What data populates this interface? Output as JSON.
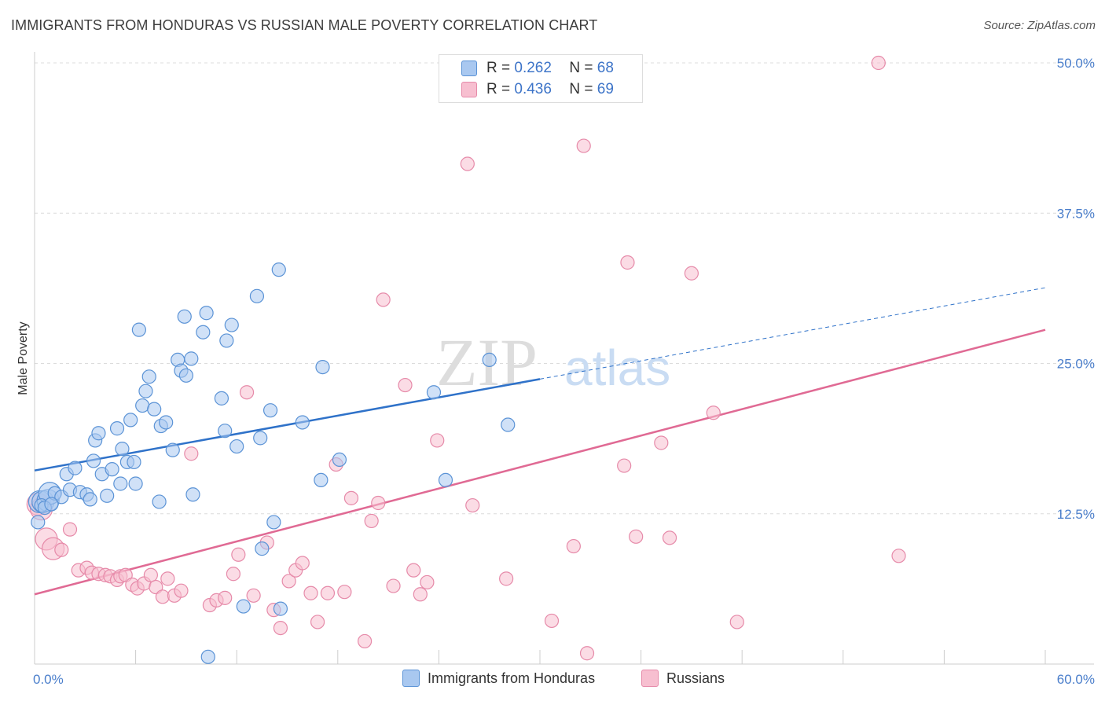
{
  "title": "IMMIGRANTS FROM HONDURAS VS RUSSIAN MALE POVERTY CORRELATION CHART",
  "source": "Source: ZipAtlas.com",
  "watermark": {
    "left": "ZIP",
    "right": "atlas"
  },
  "legend": {
    "rows": [
      {
        "r_label": "R =",
        "r_value": "0.262",
        "n_label": "N =",
        "n_value": "68"
      },
      {
        "r_label": "R =",
        "r_value": "0.436",
        "n_label": "N =",
        "n_value": "69"
      }
    ]
  },
  "bottom_legend": [
    "Immigrants from Honduras",
    "Russians"
  ],
  "colors": {
    "blue_fill": "#a9c8f0",
    "blue_stroke": "#5b93d6",
    "blue_line": "#2f72c9",
    "pink_fill": "#f7bfd0",
    "pink_stroke": "#e68aa9",
    "pink_line": "#e06a94",
    "grid": "#dcdcdc",
    "tick_text": "#4a7ecb"
  },
  "chart_data": {
    "type": "scatter",
    "xlabel": "",
    "ylabel": "Male Poverty",
    "xlim": [
      0,
      60
    ],
    "ylim": [
      0,
      50
    ],
    "x_ticks": [
      {
        "value": 0,
        "label": "0.0%"
      },
      {
        "value": 60,
        "label": "60.0%"
      }
    ],
    "y_ticks": [
      {
        "value": 12.5,
        "label": "12.5%"
      },
      {
        "value": 25,
        "label": "25.0%"
      },
      {
        "value": 37.5,
        "label": "37.5%"
      },
      {
        "value": 50,
        "label": "50.0%"
      }
    ],
    "grid": true,
    "legend_position": "top-center",
    "series": [
      {
        "name": "Immigrants from Honduras",
        "color": "blue",
        "trend": {
          "x0": 0,
          "y0": 16.1,
          "x1": 30,
          "y1": 23.7,
          "dash_to_x": 60,
          "dash_to_y": 31.3
        },
        "points": [
          [
            0.3,
            13.5
          ],
          [
            0.5,
            13.5
          ],
          [
            0.8,
            13.6
          ],
          [
            0.9,
            14.2
          ],
          [
            1.2,
            14.2
          ],
          [
            1.6,
            13.9
          ],
          [
            1.9,
            15.8
          ],
          [
            2.1,
            14.5
          ],
          [
            2.4,
            16.3
          ],
          [
            2.7,
            14.3
          ],
          [
            3.1,
            14.1
          ],
          [
            3.3,
            13.7
          ],
          [
            3.5,
            16.9
          ],
          [
            3.6,
            18.6
          ],
          [
            3.8,
            19.2
          ],
          [
            4.0,
            15.8
          ],
          [
            4.3,
            14.0
          ],
          [
            4.6,
            16.2
          ],
          [
            4.9,
            19.6
          ],
          [
            5.1,
            15.0
          ],
          [
            5.2,
            17.9
          ],
          [
            5.5,
            16.8
          ],
          [
            5.7,
            20.3
          ],
          [
            5.9,
            16.8
          ],
          [
            6.0,
            15.0
          ],
          [
            6.2,
            27.8
          ],
          [
            6.4,
            21.5
          ],
          [
            6.6,
            22.7
          ],
          [
            6.8,
            23.9
          ],
          [
            7.1,
            21.2
          ],
          [
            7.4,
            13.5
          ],
          [
            7.5,
            19.8
          ],
          [
            7.8,
            20.1
          ],
          [
            8.2,
            17.8
          ],
          [
            8.5,
            25.3
          ],
          [
            8.7,
            24.4
          ],
          [
            8.9,
            28.9
          ],
          [
            9.0,
            24.0
          ],
          [
            9.3,
            25.4
          ],
          [
            9.4,
            14.1
          ],
          [
            10.0,
            27.6
          ],
          [
            10.2,
            29.2
          ],
          [
            10.3,
            0.6
          ],
          [
            11.1,
            22.1
          ],
          [
            11.3,
            19.4
          ],
          [
            11.4,
            26.9
          ],
          [
            11.7,
            28.2
          ],
          [
            12.0,
            18.1
          ],
          [
            12.4,
            4.8
          ],
          [
            13.2,
            30.6
          ],
          [
            13.4,
            18.8
          ],
          [
            13.5,
            9.6
          ],
          [
            14.0,
            21.1
          ],
          [
            14.2,
            11.8
          ],
          [
            14.5,
            32.8
          ],
          [
            14.6,
            4.6
          ],
          [
            15.9,
            20.1
          ],
          [
            17.0,
            15.3
          ],
          [
            17.1,
            24.7
          ],
          [
            18.1,
            17.0
          ],
          [
            23.7,
            22.6
          ],
          [
            24.4,
            15.3
          ],
          [
            27.0,
            25.3
          ],
          [
            28.1,
            19.9
          ],
          [
            0.2,
            11.8
          ],
          [
            0.4,
            13.2
          ],
          [
            0.6,
            13.0
          ],
          [
            1.0,
            13.3
          ]
        ]
      },
      {
        "name": "Russians",
        "color": "pink",
        "trend": {
          "x0": 0,
          "y0": 5.8,
          "x1": 60,
          "y1": 27.8
        },
        "points": [
          [
            0.2,
            13.3
          ],
          [
            0.4,
            12.9
          ],
          [
            0.7,
            10.4
          ],
          [
            1.1,
            9.6
          ],
          [
            1.6,
            9.5
          ],
          [
            2.1,
            11.2
          ],
          [
            2.6,
            7.8
          ],
          [
            3.1,
            8.0
          ],
          [
            3.4,
            7.6
          ],
          [
            3.8,
            7.5
          ],
          [
            4.2,
            7.4
          ],
          [
            4.5,
            7.3
          ],
          [
            4.9,
            7.0
          ],
          [
            5.1,
            7.3
          ],
          [
            5.4,
            7.4
          ],
          [
            5.8,
            6.6
          ],
          [
            6.1,
            6.3
          ],
          [
            6.5,
            6.7
          ],
          [
            6.9,
            7.4
          ],
          [
            7.2,
            6.4
          ],
          [
            7.6,
            5.6
          ],
          [
            7.9,
            7.1
          ],
          [
            8.3,
            5.7
          ],
          [
            8.7,
            6.1
          ],
          [
            9.3,
            17.5
          ],
          [
            10.4,
            4.9
          ],
          [
            10.8,
            5.3
          ],
          [
            11.3,
            5.5
          ],
          [
            11.8,
            7.5
          ],
          [
            12.1,
            9.1
          ],
          [
            12.6,
            22.6
          ],
          [
            13.0,
            5.7
          ],
          [
            13.8,
            10.1
          ],
          [
            14.2,
            4.5
          ],
          [
            14.6,
            3.0
          ],
          [
            15.1,
            6.9
          ],
          [
            15.5,
            7.8
          ],
          [
            15.9,
            8.4
          ],
          [
            16.4,
            5.9
          ],
          [
            16.8,
            3.5
          ],
          [
            17.4,
            5.9
          ],
          [
            17.9,
            16.6
          ],
          [
            18.4,
            6.0
          ],
          [
            18.8,
            13.8
          ],
          [
            19.6,
            1.9
          ],
          [
            20.0,
            11.9
          ],
          [
            20.4,
            13.4
          ],
          [
            20.7,
            30.3
          ],
          [
            21.3,
            6.5
          ],
          [
            22.0,
            23.2
          ],
          [
            22.5,
            7.8
          ],
          [
            22.9,
            5.8
          ],
          [
            23.3,
            6.8
          ],
          [
            23.9,
            18.6
          ],
          [
            25.7,
            41.6
          ],
          [
            26.0,
            13.2
          ],
          [
            28.0,
            7.1
          ],
          [
            30.7,
            3.6
          ],
          [
            32.0,
            9.8
          ],
          [
            32.6,
            43.1
          ],
          [
            32.8,
            0.9
          ],
          [
            35.0,
            16.5
          ],
          [
            35.2,
            33.4
          ],
          [
            35.7,
            10.6
          ],
          [
            37.2,
            18.4
          ],
          [
            37.7,
            10.5
          ],
          [
            39.0,
            32.5
          ],
          [
            40.3,
            20.9
          ],
          [
            41.7,
            3.5
          ]
        ]
      }
    ],
    "extra_points_pink": [
      [
        50.1,
        50.0
      ],
      [
        51.3,
        9.0
      ]
    ]
  }
}
